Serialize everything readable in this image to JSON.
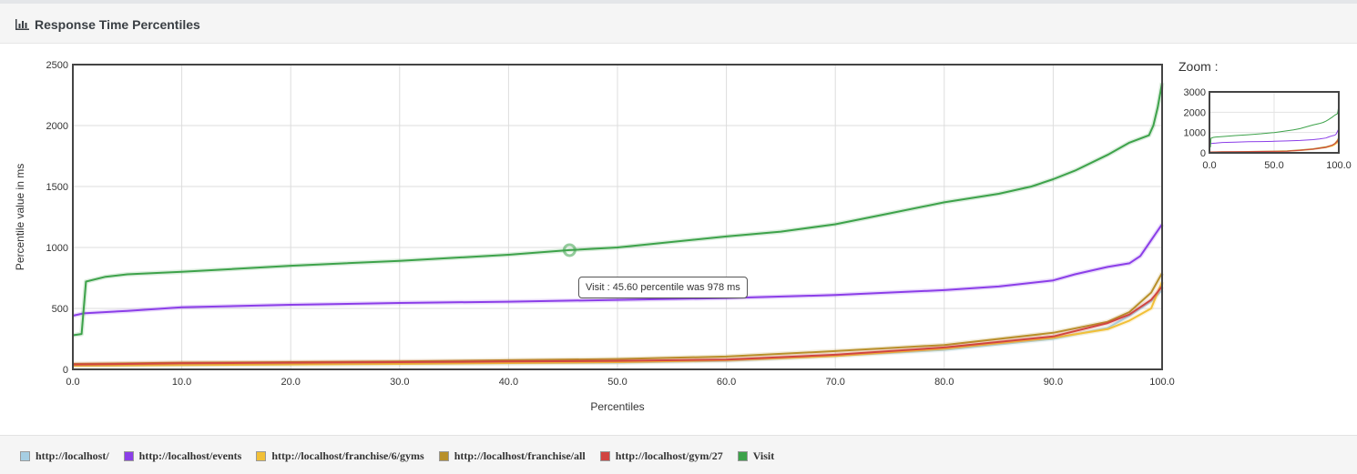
{
  "panel": {
    "title": "Response Time Percentiles",
    "icon": "bar-chart-icon"
  },
  "zoom": {
    "label": "Zoom :",
    "y_ticks": [
      "0",
      "1000",
      "2000",
      "3000"
    ],
    "x_ticks": [
      "0.0",
      "50.0",
      "100.0"
    ]
  },
  "tooltip": {
    "text": "Visit : 45.60 percentile was 978 ms",
    "series": "Visit",
    "x": 45.6,
    "y": 978
  },
  "chart_data": {
    "type": "line",
    "title": "Response Time Percentiles",
    "xlabel": "Percentiles",
    "ylabel": "Percentile value in ms",
    "xlim": [
      0,
      100
    ],
    "ylim": [
      0,
      2500
    ],
    "x_ticks": [
      "0.0",
      "10.0",
      "20.0",
      "30.0",
      "40.0",
      "50.0",
      "60.0",
      "70.0",
      "80.0",
      "90.0",
      "100.0"
    ],
    "y_ticks": [
      "0",
      "500",
      "1000",
      "1500",
      "2000",
      "2500"
    ],
    "grid": true,
    "legend_position": "bottom",
    "series": [
      {
        "name": "http://localhost/",
        "color": "#a6cee3",
        "points": [
          [
            0,
            30
          ],
          [
            10,
            35
          ],
          [
            20,
            40
          ],
          [
            30,
            45
          ],
          [
            40,
            50
          ],
          [
            50,
            55
          ],
          [
            60,
            70
          ],
          [
            70,
            110
          ],
          [
            80,
            160
          ],
          [
            90,
            250
          ],
          [
            95,
            340
          ],
          [
            97,
            440
          ],
          [
            99,
            560
          ],
          [
            100,
            650
          ]
        ]
      },
      {
        "name": "http://localhost/events",
        "color": "#8b3ee8",
        "points": [
          [
            0,
            440
          ],
          [
            1,
            460
          ],
          [
            5,
            480
          ],
          [
            10,
            510
          ],
          [
            20,
            530
          ],
          [
            30,
            545
          ],
          [
            40,
            555
          ],
          [
            50,
            570
          ],
          [
            60,
            585
          ],
          [
            70,
            610
          ],
          [
            80,
            650
          ],
          [
            85,
            680
          ],
          [
            90,
            730
          ],
          [
            92,
            780
          ],
          [
            95,
            840
          ],
          [
            97,
            870
          ],
          [
            98,
            930
          ],
          [
            99,
            1060
          ],
          [
            100,
            1190
          ]
        ]
      },
      {
        "name": "http://localhost/franchise/6/gyms",
        "color": "#f2c037",
        "points": [
          [
            0,
            30
          ],
          [
            10,
            35
          ],
          [
            20,
            40
          ],
          [
            30,
            45
          ],
          [
            40,
            52
          ],
          [
            50,
            60
          ],
          [
            60,
            75
          ],
          [
            70,
            110
          ],
          [
            80,
            170
          ],
          [
            90,
            260
          ],
          [
            95,
            330
          ],
          [
            97,
            400
          ],
          [
            99,
            500
          ],
          [
            100,
            720
          ]
        ]
      },
      {
        "name": "http://localhost/franchise/all",
        "color": "#b8902a",
        "points": [
          [
            0,
            45
          ],
          [
            10,
            55
          ],
          [
            20,
            60
          ],
          [
            30,
            65
          ],
          [
            40,
            75
          ],
          [
            50,
            85
          ],
          [
            60,
            105
          ],
          [
            70,
            150
          ],
          [
            80,
            200
          ],
          [
            90,
            300
          ],
          [
            95,
            390
          ],
          [
            97,
            470
          ],
          [
            99,
            630
          ],
          [
            100,
            790
          ]
        ]
      },
      {
        "name": "http://localhost/gym/27",
        "color": "#d14541",
        "points": [
          [
            0,
            40
          ],
          [
            10,
            50
          ],
          [
            20,
            55
          ],
          [
            30,
            60
          ],
          [
            40,
            65
          ],
          [
            50,
            70
          ],
          [
            60,
            80
          ],
          [
            70,
            120
          ],
          [
            80,
            180
          ],
          [
            90,
            270
          ],
          [
            95,
            380
          ],
          [
            97,
            450
          ],
          [
            99,
            570
          ],
          [
            100,
            680
          ]
        ]
      },
      {
        "name": "Visit",
        "color": "#3da24a",
        "points": [
          [
            0,
            280
          ],
          [
            0.8,
            290
          ],
          [
            1.2,
            720
          ],
          [
            3,
            760
          ],
          [
            5,
            780
          ],
          [
            10,
            800
          ],
          [
            20,
            850
          ],
          [
            30,
            890
          ],
          [
            40,
            940
          ],
          [
            45.6,
            978
          ],
          [
            50,
            1000
          ],
          [
            60,
            1090
          ],
          [
            65,
            1130
          ],
          [
            70,
            1190
          ],
          [
            75,
            1280
          ],
          [
            80,
            1370
          ],
          [
            85,
            1440
          ],
          [
            88,
            1500
          ],
          [
            90,
            1560
          ],
          [
            92,
            1630
          ],
          [
            95,
            1760
          ],
          [
            97,
            1860
          ],
          [
            98.8,
            1920
          ],
          [
            99.2,
            2000
          ],
          [
            99.6,
            2150
          ],
          [
            100,
            2350
          ]
        ]
      }
    ]
  }
}
